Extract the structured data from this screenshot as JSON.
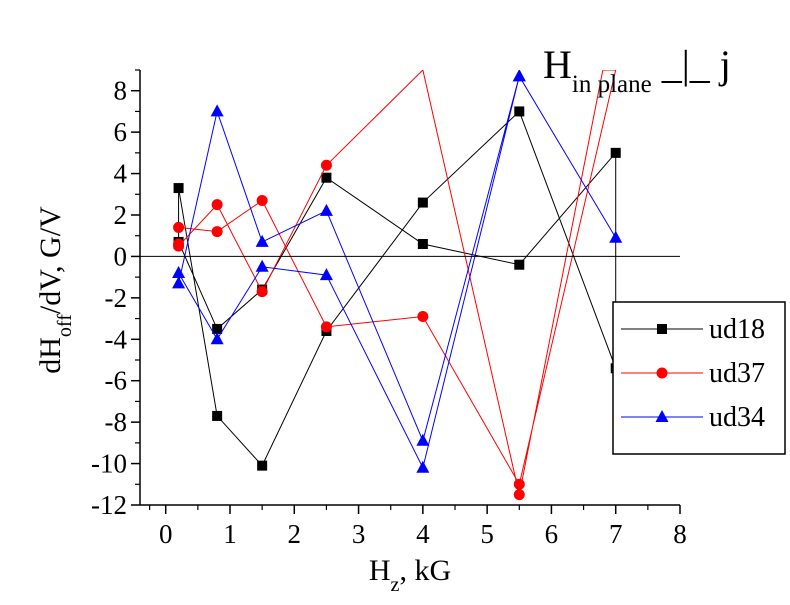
{
  "chart_data": {
    "type": "line",
    "xlabel": {
      "main": "H",
      "sub": "z",
      "rest": ", kG"
    },
    "ylabel": {
      "main": "dH",
      "sub": "off",
      "rest": "/dV, G/V"
    },
    "annotation": {
      "main": "H",
      "sub": "in plane",
      "rest": " _|_ j"
    },
    "xlim": [
      -0.4,
      8
    ],
    "ylim": [
      -12,
      9
    ],
    "xticks": [
      0,
      1,
      2,
      3,
      4,
      5,
      6,
      7,
      8
    ],
    "yticks": [
      8,
      6,
      4,
      2,
      0,
      -2,
      -4,
      -6,
      -8,
      -10,
      -12
    ],
    "zero_line": true,
    "legend": {
      "position": "right",
      "entries": [
        "ud18",
        "ud37",
        "ud34"
      ]
    },
    "series": [
      {
        "name": "ud18",
        "color": "#000000",
        "marker": "square",
        "x": [
          0.2,
          0.8,
          1.5,
          2.5,
          4.0,
          5.5,
          7.0,
          7.0,
          5.5,
          4.0,
          2.5,
          1.5,
          0.8,
          0.2,
          0.2
        ],
        "y": [
          0.7,
          -3.5,
          -1.6,
          3.8,
          0.6,
          -0.4,
          5.0,
          -5.4,
          7.0,
          2.6,
          -3.6,
          -10.1,
          -7.7,
          3.3,
          0.6
        ]
      },
      {
        "name": "ud37",
        "color": "#ff0000",
        "marker": "circle",
        "x": [
          0.2,
          0.8,
          1.5,
          2.5,
          4.0,
          5.5,
          7.0,
          6.8,
          5.5,
          4.0,
          2.5,
          1.5,
          0.8,
          0.2,
          0.2
        ],
        "y": [
          1.4,
          1.2,
          2.7,
          -3.4,
          -2.9,
          -11.0,
          9.0,
          9.0,
          -11.5,
          9.0,
          4.4,
          -1.7,
          2.5,
          0.5,
          0.6
        ]
      },
      {
        "name": "ud34",
        "color": "#0000ff",
        "marker": "triangle",
        "x": [
          0.2,
          0.8,
          1.5,
          2.5,
          4.0,
          5.5,
          7.0,
          5.5,
          4.0,
          2.5,
          1.5,
          0.8,
          0.2
        ],
        "y": [
          -1.3,
          7.0,
          0.7,
          2.2,
          -8.9,
          8.7,
          0.9,
          8.7,
          -10.2,
          -0.9,
          -0.5,
          -4.0,
          -0.8
        ]
      }
    ]
  }
}
